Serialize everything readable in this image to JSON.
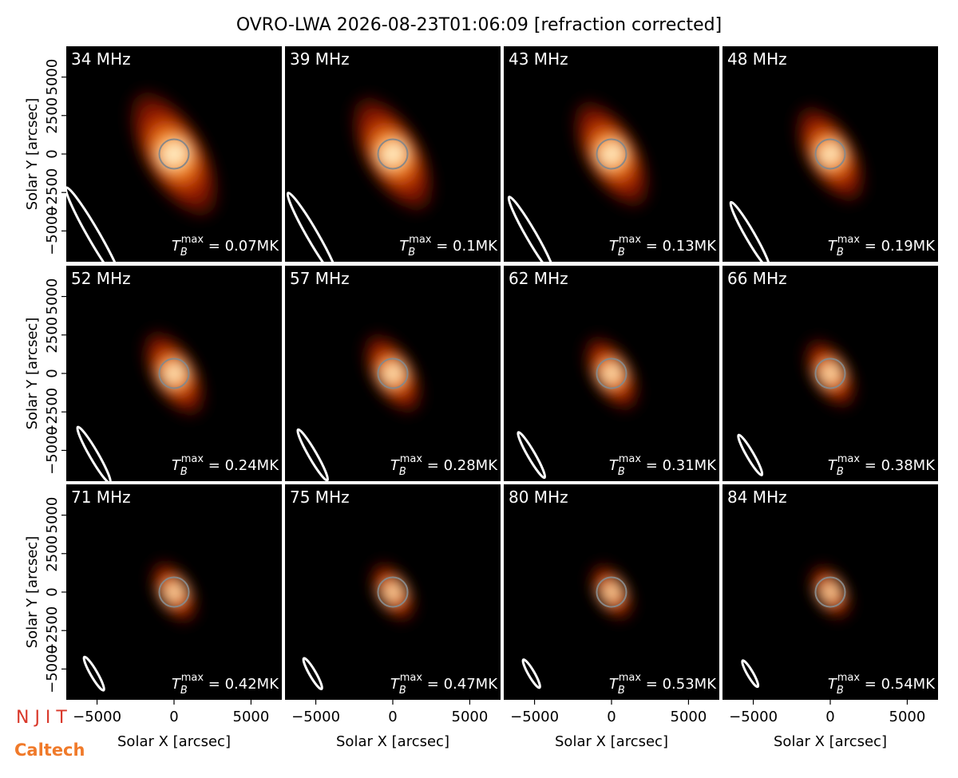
{
  "chart_data": {
    "type": "image_grid",
    "title": "OVRO-LWA 2026-08-23T01:06:09 [refraction corrected]",
    "xlabel": "Solar X [arcsec]",
    "ylabel": "Solar Y [arcsec]",
    "xlim": [
      -7000,
      7000
    ],
    "ylim": [
      -7000,
      7000
    ],
    "xticks": [
      {
        "value": -5000,
        "label": "−5000"
      },
      0,
      5000
    ],
    "yticks": [
      {
        "value": -5000,
        "label": "−5000"
      },
      {
        "value": -2500,
        "label": "−2500"
      },
      0,
      2500,
      5000
    ],
    "solar_radius": 960,
    "panels": [
      {
        "label": "34 MHz",
        "annotation": {
          "symbol": "T",
          "sub": "B",
          "sup": "max",
          "text": " = 0.07MK"
        },
        "beam": {
          "major": 3600,
          "minor": 380,
          "angle": 60
        }
      },
      {
        "label": "39 MHz",
        "annotation": {
          "symbol": "T",
          "sub": "B",
          "sup": "max",
          "text": " = 0.1MK"
        },
        "beam": {
          "major": 3200,
          "minor": 360,
          "angle": 60
        }
      },
      {
        "label": "43 MHz",
        "annotation": {
          "symbol": "T",
          "sub": "B",
          "sup": "max",
          "text": " = 0.13MK"
        },
        "beam": {
          "major": 2900,
          "minor": 330,
          "angle": 60
        }
      },
      {
        "label": "48 MHz",
        "annotation": {
          "symbol": "T",
          "sub": "B",
          "sup": "max",
          "text": " = 0.19MK"
        },
        "beam": {
          "major": 2500,
          "minor": 300,
          "angle": 60
        }
      },
      {
        "label": "52 MHz",
        "annotation": {
          "symbol": "T",
          "sub": "B",
          "sup": "max",
          "text": " = 0.24MK"
        },
        "beam": {
          "major": 2100,
          "minor": 280,
          "angle": 60
        }
      },
      {
        "label": "57 MHz",
        "annotation": {
          "symbol": "T",
          "sub": "B",
          "sup": "max",
          "text": " = 0.28MK"
        },
        "beam": {
          "major": 1900,
          "minor": 260,
          "angle": 60
        }
      },
      {
        "label": "62 MHz",
        "annotation": {
          "symbol": "T",
          "sub": "B",
          "sup": "max",
          "text": " = 0.31MK"
        },
        "beam": {
          "major": 1700,
          "minor": 240,
          "angle": 60
        }
      },
      {
        "label": "66 MHz",
        "annotation": {
          "symbol": "T",
          "sub": "B",
          "sup": "max",
          "text": " = 0.38MK"
        },
        "beam": {
          "major": 1500,
          "minor": 230,
          "angle": 60
        }
      },
      {
        "label": "71 MHz",
        "annotation": {
          "symbol": "T",
          "sub": "B",
          "sup": "max",
          "text": " = 0.42MK"
        },
        "beam": {
          "major": 1250,
          "minor": 220,
          "angle": 60
        }
      },
      {
        "label": "75 MHz",
        "annotation": {
          "symbol": "T",
          "sub": "B",
          "sup": "max",
          "text": " = 0.47MK"
        },
        "beam": {
          "major": 1150,
          "minor": 210,
          "angle": 60
        }
      },
      {
        "label": "80 MHz",
        "annotation": {
          "symbol": "T",
          "sub": "B",
          "sup": "max",
          "text": " = 0.53MK"
        },
        "beam": {
          "major": 1050,
          "minor": 200,
          "angle": 60
        }
      },
      {
        "label": "84 MHz",
        "annotation": {
          "symbol": "T",
          "sub": "B",
          "sup": "max",
          "text": " = 0.54MK"
        },
        "beam": {
          "major": 980,
          "minor": 190,
          "angle": 60
        }
      }
    ]
  },
  "logos": [
    "N J I T",
    "Caltech"
  ]
}
